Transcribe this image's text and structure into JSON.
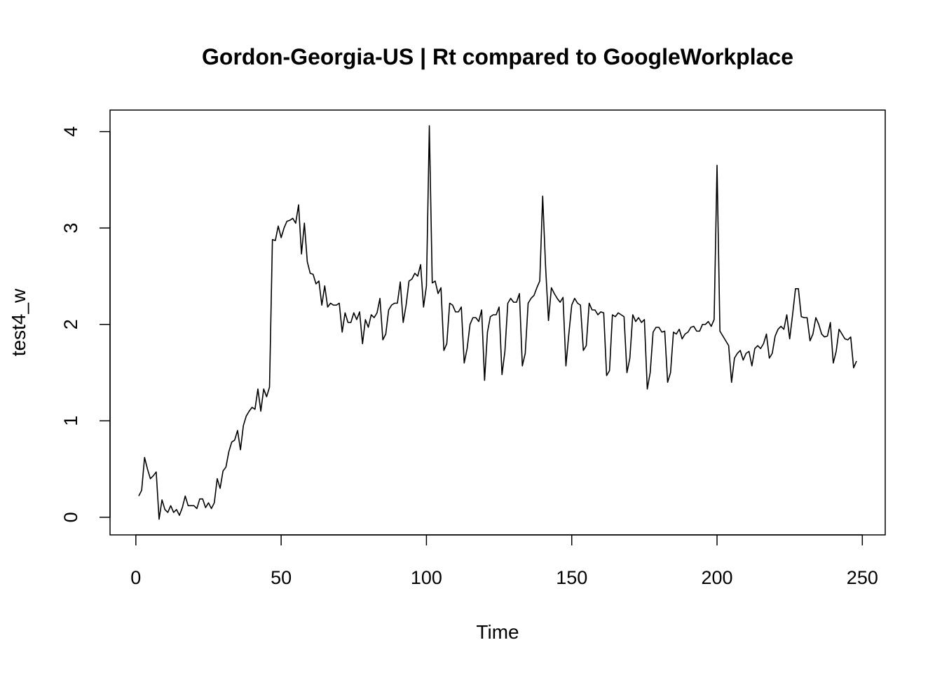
{
  "chart_data": {
    "type": "line",
    "title": "Gordon-Georgia-US | Rt compared to GoogleWorkplace",
    "xlabel": "Time",
    "ylabel": "test4_w",
    "color": "#000000",
    "xlim": [
      -8.88,
      257.88
    ],
    "ylim": [
      -0.183,
      4.223
    ],
    "xticks": [
      0,
      50,
      100,
      150,
      200,
      250
    ],
    "yticks": [
      0,
      1,
      2,
      3,
      4
    ],
    "x": [
      1,
      2,
      3,
      4,
      5,
      6,
      7,
      8,
      9,
      10,
      11,
      12,
      13,
      14,
      15,
      16,
      17,
      18,
      19,
      20,
      21,
      22,
      23,
      24,
      25,
      26,
      27,
      28,
      29,
      30,
      31,
      32,
      33,
      34,
      35,
      36,
      37,
      38,
      39,
      40,
      41,
      42,
      43,
      44,
      45,
      46,
      47,
      48,
      49,
      50,
      51,
      52,
      53,
      54,
      55,
      56,
      57,
      58,
      59,
      60,
      61,
      62,
      63,
      64,
      65,
      66,
      67,
      68,
      69,
      70,
      71,
      72,
      73,
      74,
      75,
      76,
      77,
      78,
      79,
      80,
      81,
      82,
      83,
      84,
      85,
      86,
      87,
      88,
      89,
      90,
      91,
      92,
      93,
      94,
      95,
      96,
      97,
      98,
      99,
      100,
      101,
      102,
      103,
      104,
      105,
      106,
      107,
      108,
      109,
      110,
      111,
      112,
      113,
      114,
      115,
      116,
      117,
      118,
      119,
      120,
      121,
      122,
      123,
      124,
      125,
      126,
      127,
      128,
      129,
      130,
      131,
      132,
      133,
      134,
      135,
      136,
      137,
      138,
      139,
      140,
      141,
      142,
      143,
      144,
      145,
      146,
      147,
      148,
      149,
      150,
      151,
      152,
      153,
      154,
      155,
      156,
      157,
      158,
      159,
      160,
      161,
      162,
      163,
      164,
      165,
      166,
      167,
      168,
      169,
      170,
      171,
      172,
      173,
      174,
      175,
      176,
      177,
      178,
      179,
      180,
      181,
      182,
      183,
      184,
      185,
      186,
      187,
      188,
      189,
      190,
      191,
      192,
      193,
      194,
      195,
      196,
      197,
      198,
      199,
      200,
      201,
      202,
      203,
      204,
      205,
      206,
      207,
      208,
      209,
      210,
      211,
      212,
      213,
      214,
      215,
      216,
      217,
      218,
      219,
      220,
      221,
      222,
      223,
      224,
      225,
      226,
      227,
      228,
      229,
      230,
      231,
      232,
      233,
      234,
      235,
      236,
      237,
      238,
      239,
      240,
      241,
      242,
      243,
      244,
      245,
      246,
      247,
      248
    ],
    "values": [
      0.22,
      0.28,
      0.62,
      0.5,
      0.4,
      0.43,
      0.47,
      -0.02,
      0.18,
      0.08,
      0.05,
      0.12,
      0.05,
      0.08,
      0.02,
      0.1,
      0.22,
      0.12,
      0.12,
      0.12,
      0.09,
      0.19,
      0.19,
      0.1,
      0.15,
      0.09,
      0.15,
      0.4,
      0.3,
      0.48,
      0.52,
      0.68,
      0.78,
      0.8,
      0.9,
      0.7,
      0.95,
      1.05,
      1.1,
      1.14,
      1.12,
      1.33,
      1.1,
      1.33,
      1.25,
      1.35,
      2.88,
      2.87,
      3.02,
      2.9,
      3.0,
      3.07,
      3.08,
      3.1,
      3.05,
      3.24,
      2.73,
      3.05,
      2.65,
      2.53,
      2.52,
      2.42,
      2.45,
      2.2,
      2.4,
      2.18,
      2.22,
      2.2,
      2.2,
      2.22,
      1.92,
      2.12,
      2.02,
      2.02,
      2.12,
      2.05,
      2.13,
      1.8,
      2.05,
      1.97,
      2.1,
      2.07,
      2.12,
      2.27,
      1.84,
      1.9,
      2.15,
      2.2,
      2.22,
      2.22,
      2.44,
      2.02,
      2.2,
      2.45,
      2.47,
      2.53,
      2.5,
      2.62,
      2.18,
      2.4,
      4.06,
      2.43,
      2.45,
      2.32,
      2.38,
      1.73,
      1.8,
      2.22,
      2.2,
      2.13,
      2.13,
      2.18,
      1.6,
      1.75,
      2.0,
      2.07,
      2.07,
      2.03,
      2.15,
      1.42,
      1.92,
      2.08,
      2.1,
      2.1,
      2.18,
      1.48,
      1.72,
      2.22,
      2.27,
      2.23,
      2.23,
      2.32,
      1.57,
      1.7,
      2.22,
      2.27,
      2.3,
      2.38,
      2.45,
      3.33,
      2.6,
      2.04,
      2.38,
      2.32,
      2.27,
      2.23,
      2.28,
      1.57,
      1.9,
      2.2,
      2.27,
      2.22,
      2.2,
      1.73,
      1.78,
      2.22,
      2.15,
      2.15,
      2.1,
      2.13,
      2.12,
      1.47,
      1.52,
      2.1,
      2.08,
      2.12,
      2.1,
      2.08,
      1.5,
      1.65,
      2.1,
      2.03,
      2.07,
      2.02,
      2.05,
      1.33,
      1.5,
      1.92,
      1.97,
      1.97,
      1.92,
      1.93,
      1.4,
      1.5,
      1.92,
      1.9,
      1.95,
      1.85,
      1.9,
      1.92,
      1.97,
      1.98,
      1.93,
      1.93,
      2.0,
      2.0,
      2.03,
      1.98,
      2.05,
      3.65,
      1.93,
      1.88,
      1.83,
      1.78,
      1.4,
      1.65,
      1.7,
      1.73,
      1.63,
      1.7,
      1.72,
      1.57,
      1.75,
      1.78,
      1.75,
      1.8,
      1.9,
      1.65,
      1.7,
      1.88,
      1.95,
      1.98,
      1.95,
      2.1,
      1.85,
      2.1,
      2.37,
      2.37,
      2.08,
      2.07,
      2.07,
      1.83,
      1.9,
      2.07,
      2.0,
      1.9,
      1.87,
      1.88,
      2.02,
      1.6,
      1.72,
      1.95,
      1.9,
      1.85,
      1.84,
      1.87,
      1.55,
      1.62
    ]
  }
}
